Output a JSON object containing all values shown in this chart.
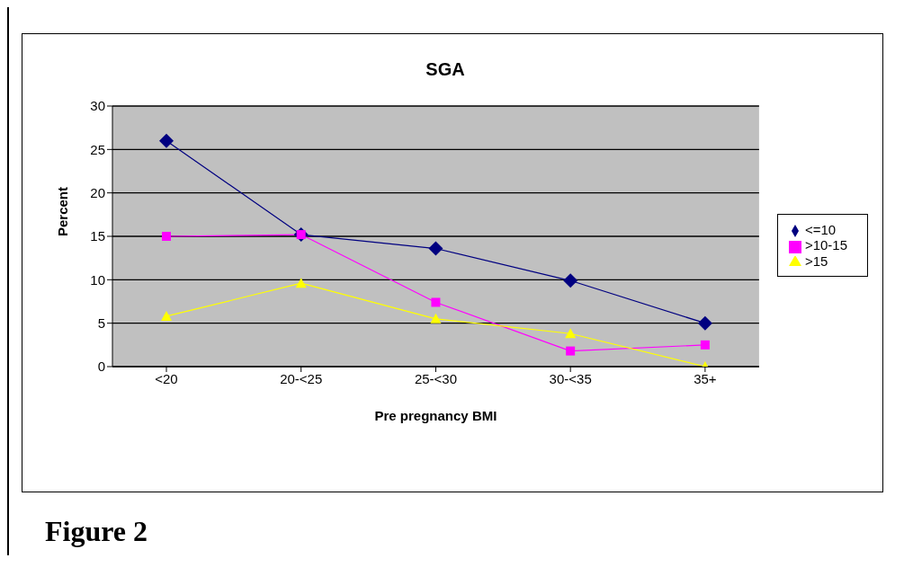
{
  "chart_data": {
    "type": "line",
    "title": "SGA",
    "xlabel": "Pre pregnancy BMI",
    "ylabel": "Percent",
    "categories": [
      "<20",
      "20-<25",
      "25-<30",
      "30-<35",
      "35+"
    ],
    "series": [
      {
        "name": "<=10",
        "color": "#000080",
        "marker": "diamond",
        "values": [
          26,
          15.2,
          13.6,
          9.9,
          5
        ]
      },
      {
        "name": ">10-15",
        "color": "#ff00ff",
        "marker": "square",
        "values": [
          15,
          15.2,
          7.4,
          1.8,
          2.5
        ]
      },
      {
        "name": ">15",
        "color": "#ffff00",
        "marker": "triangle",
        "values": [
          5.8,
          9.6,
          5.5,
          3.8,
          0
        ]
      }
    ],
    "ylim": [
      0,
      30
    ],
    "yticks": [
      0,
      5,
      10,
      15,
      20,
      25,
      30
    ],
    "grid": "y",
    "legend": "right",
    "annotations": [
      "Figure 2"
    ]
  }
}
